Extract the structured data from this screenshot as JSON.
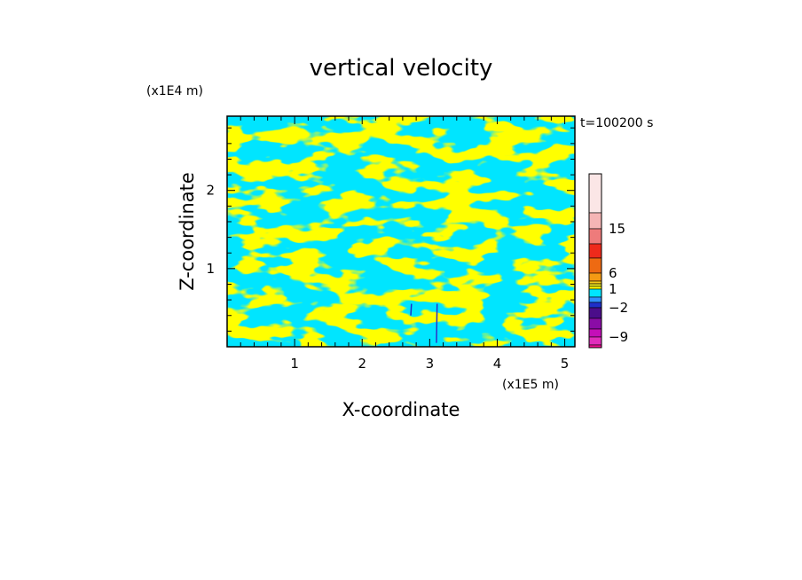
{
  "chart_data": {
    "type": "heatmap",
    "title": "vertical velocity",
    "xlabel": "X-coordinate",
    "ylabel": "Z-coordinate",
    "x_unit": "(x1E5 m)",
    "y_unit": "(x1E4 m)",
    "time_label": "t=100200 s",
    "xlim": [
      0,
      5.15
    ],
    "ylim": [
      0,
      2.95
    ],
    "x_ticks": [
      "1",
      "2",
      "3",
      "4",
      "5"
    ],
    "y_ticks": [
      "1",
      "2"
    ],
    "colorbar": {
      "levels": [
        {
          "upper": 21,
          "color": "#fbe6e6"
        },
        {
          "upper": 18,
          "color": "#f5b5b5"
        },
        {
          "upper": 15,
          "color": "#ee7b7b"
        },
        {
          "upper": 12,
          "color": "#ee2a1b"
        },
        {
          "upper": 9,
          "color": "#ee6a12"
        },
        {
          "upper": 6,
          "color": "#f49a14"
        },
        {
          "upper": 4,
          "color": "#f6c81b"
        },
        {
          "upper": 3,
          "color": "#e8e01f"
        },
        {
          "upper": 2,
          "color": "#ffff00"
        },
        {
          "upper": 1,
          "color": "#00e5ff"
        },
        {
          "upper": 0,
          "color": "#2f8fff"
        },
        {
          "upper": -1,
          "color": "#1f2fc9"
        },
        {
          "upper": -2,
          "color": "#4b0d8a"
        },
        {
          "upper": -4,
          "color": "#8a0ca6"
        },
        {
          "upper": -6,
          "color": "#c40fb8"
        },
        {
          "upper": -9,
          "color": "#e02dbc"
        },
        {
          "upper": -12,
          "color": "#f30e95"
        }
      ],
      "tick_labels": [
        "15",
        "6",
        "1",
        "−2",
        "−9"
      ]
    },
    "dominant_colors": {
      "positive": "#ffff00",
      "negative": "#00e5ff"
    }
  }
}
